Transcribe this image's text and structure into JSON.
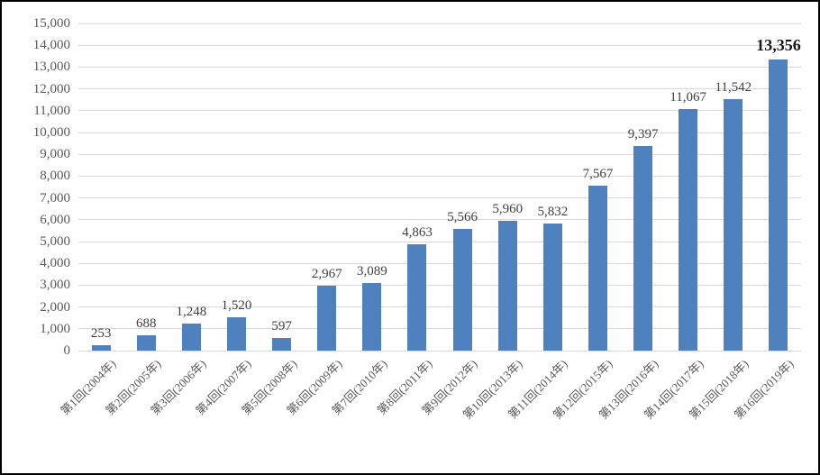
{
  "chart_data": {
    "type": "bar",
    "title": "",
    "xlabel": "",
    "ylabel": "",
    "categories": [
      "第1回(2004年)",
      "第2回(2005年)",
      "第3回(2006年)",
      "第4回(2007年)",
      "第5回(2008年)",
      "第6回(2009年)",
      "第7回(2010年)",
      "第8回(2011年)",
      "第9回(2012年)",
      "第10回(2013年)",
      "第11回(2014年)",
      "第12回(2015年)",
      "第13回(2016年)",
      "第14回(2017年)",
      "第15回(2018年)",
      "第16回(2019年)"
    ],
    "values": [
      253,
      688,
      1248,
      1520,
      597,
      2967,
      3089,
      4863,
      5566,
      5960,
      5832,
      7567,
      9397,
      11067,
      11542,
      13356
    ],
    "data_labels": [
      "253",
      "688",
      "1,248",
      "1,520",
      "597",
      "2,967",
      "3,089",
      "4,863",
      "5,566",
      "5,960",
      "5,832",
      "7,567",
      "9,397",
      "11,067",
      "11,542",
      "13,356"
    ],
    "emphasized_label_index": 15,
    "ylim": [
      0,
      15000
    ],
    "ytick_interval": 1000,
    "ytick_labels": [
      "0",
      "1,000",
      "2,000",
      "3,000",
      "4,000",
      "5,000",
      "6,000",
      "7,000",
      "8,000",
      "9,000",
      "10,000",
      "11,000",
      "12,000",
      "13,000",
      "14,000",
      "15,000"
    ],
    "grid": true,
    "legend": false,
    "x_labels_rotated_degrees": 45,
    "colors": {
      "bar": "#4e81bd",
      "gridline": "#d9d9d9",
      "axis_tick_text": "#595959",
      "data_label_text": "#404040",
      "emphasized_label_text": "#1a1a1a",
      "frame_border": "#000000",
      "background": "#ffffff"
    }
  }
}
